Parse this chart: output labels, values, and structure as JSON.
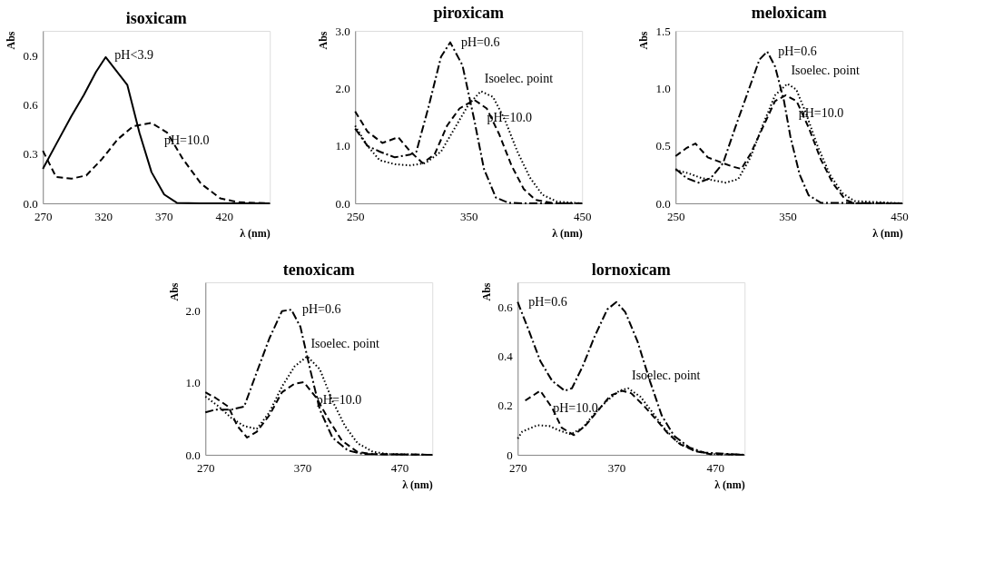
{
  "chart_data": [
    {
      "type": "line",
      "title": "isoxicam",
      "xlabel": "λ (nm)",
      "ylabel": "Abs",
      "xlim": [
        270,
        458
      ],
      "ylim": [
        0,
        1.05
      ],
      "xticks": [
        270,
        320,
        370,
        420
      ],
      "yticks": [
        {
          "value": 0,
          "label": "0.0"
        },
        0.3,
        0.6,
        0.9
      ],
      "grid": false,
      "series": [
        {
          "name": "pH<3.9",
          "color": "#000000",
          "line_style": "solid",
          "x": [
            270,
            281,
            293.6,
            304,
            314,
            322,
            340,
            350,
            360,
            370.5,
            381,
            400,
            430,
            458
          ],
          "values": [
            0.21,
            0.36,
            0.53,
            0.66,
            0.8,
            0.89,
            0.72,
            0.43,
            0.19,
            0.054,
            0.003,
            0,
            0,
            0
          ]
        },
        {
          "name": "pH=10.0",
          "color": "#000000",
          "line_style": "dashed",
          "x": [
            270,
            281,
            293.6,
            306,
            319,
            332,
            345,
            360,
            373,
            386,
            401,
            417,
            432,
            458
          ],
          "values": [
            0.32,
            0.16,
            0.15,
            0.17,
            0.27,
            0.39,
            0.47,
            0.49,
            0.43,
            0.27,
            0.12,
            0.03,
            0.007,
            0
          ]
        }
      ]
    },
    {
      "type": "line",
      "title": "piroxicam",
      "xlabel": "λ (nm)",
      "ylabel": "Abs",
      "xlim": [
        250,
        450
      ],
      "ylim": [
        0,
        3
      ],
      "xticks": [
        250,
        350,
        450
      ],
      "yticks": [
        {
          "value": 0,
          "label": "0.0"
        },
        {
          "value": 1,
          "label": "1.0"
        },
        {
          "value": 2,
          "label": "2.0"
        },
        {
          "value": 3,
          "label": "3.0"
        }
      ],
      "grid": false,
      "series": [
        {
          "name": "pH=0.6",
          "color": "#000000",
          "line_style": "dashdot",
          "x": [
            250,
            260.8,
            271.6,
            285,
            298.6,
            304,
            315,
            325.7,
            333.8,
            344.6,
            355,
            363.5,
            374,
            385,
            398.6,
            450
          ],
          "values": [
            1.3,
            1.0,
            0.9,
            0.8,
            0.85,
            0.9,
            1.7,
            2.55,
            2.8,
            2.4,
            1.45,
            0.6,
            0.1,
            0.01,
            0,
            0
          ]
        },
        {
          "name": "Isoelec. point",
          "color": "#000000",
          "line_style": "dotted",
          "x": [
            250,
            260.8,
            271.6,
            285,
            298.6,
            312,
            325.7,
            339,
            350,
            360.8,
            371.6,
            382,
            393,
            404,
            415,
            428,
            450
          ],
          "values": [
            1.35,
            1.0,
            0.75,
            0.68,
            0.66,
            0.7,
            0.9,
            1.35,
            1.72,
            1.95,
            1.85,
            1.45,
            0.9,
            0.45,
            0.15,
            0.03,
            0
          ]
        },
        {
          "name": "pH=10.0",
          "color": "#000000",
          "line_style": "dashed",
          "x": [
            250,
            260.8,
            274,
            288,
            298.6,
            309.5,
            320,
            331,
            342,
            355,
            366,
            377,
            388,
            398.6,
            409,
            425.7,
            450
          ],
          "values": [
            1.6,
            1.25,
            1.05,
            1.15,
            0.9,
            0.7,
            0.85,
            1.35,
            1.65,
            1.8,
            1.65,
            1.2,
            0.65,
            0.25,
            0.06,
            0,
            0
          ]
        }
      ]
    },
    {
      "type": "line",
      "title": "meloxicam",
      "xlabel": "λ (nm)",
      "ylabel": "Abs",
      "xlim": [
        250,
        453
      ],
      "ylim": [
        0,
        1.5
      ],
      "xticks": [
        250,
        350,
        450
      ],
      "yticks": [
        {
          "value": 0,
          "label": "0.0"
        },
        0.5,
        {
          "value": 1,
          "label": "1.0"
        },
        1.5
      ],
      "grid": false,
      "series": [
        {
          "name": "pH=0.6",
          "color": "#000000",
          "line_style": "dashdot",
          "x": [
            250,
            259.6,
            270.5,
            281.5,
            292.5,
            303.4,
            314.4,
            325,
            332,
            339,
            347,
            352.7,
            361,
            369,
            380,
            453
          ],
          "values": [
            0.3,
            0.22,
            0.18,
            0.22,
            0.35,
            0.66,
            0.96,
            1.25,
            1.32,
            1.19,
            0.89,
            0.58,
            0.25,
            0.07,
            0.005,
            0
          ]
        },
        {
          "name": "Isoelec. point",
          "color": "#000000",
          "line_style": "dotted",
          "x": [
            250,
            262,
            273,
            284,
            295,
            306,
            317,
            328,
            339,
            350,
            358,
            366.4,
            377,
            388,
            399,
            410,
            453
          ],
          "values": [
            0.29,
            0.26,
            0.22,
            0.2,
            0.18,
            0.21,
            0.4,
            0.68,
            0.94,
            1.04,
            0.99,
            0.79,
            0.5,
            0.25,
            0.09,
            0.02,
            0
          ]
        },
        {
          "name": "pH=10.0",
          "color": "#000000",
          "line_style": "dashed",
          "x": [
            250,
            259.6,
            267.8,
            278.8,
            289.7,
            300.7,
            308.9,
            317,
            328,
            339,
            348.6,
            358.2,
            369,
            380,
            391,
            402,
            410,
            453
          ],
          "values": [
            0.41,
            0.48,
            0.52,
            0.4,
            0.36,
            0.32,
            0.3,
            0.43,
            0.66,
            0.89,
            0.94,
            0.89,
            0.66,
            0.38,
            0.17,
            0.03,
            0,
            0
          ]
        }
      ]
    },
    {
      "type": "line",
      "title": "tenoxicam",
      "xlabel": "λ (nm)",
      "ylabel": "Abs",
      "xlim": [
        270,
        504
      ],
      "ylim": [
        0,
        2.4
      ],
      "xticks": [
        270,
        370,
        470
      ],
      "yticks": [
        {
          "value": 0,
          "label": "0.0"
        },
        {
          "value": 1,
          "label": "1.0"
        },
        {
          "value": 2,
          "label": "2.0"
        }
      ],
      "grid": false,
      "series": [
        {
          "name": "pH=0.6",
          "color": "#000000",
          "line_style": "dashdot",
          "x": [
            270,
            280.7,
            297,
            310,
            323,
            336,
            349,
            358.6,
            368,
            378,
            388,
            401,
            417,
            433,
            504
          ],
          "values": [
            0.59,
            0.63,
            0.63,
            0.67,
            1.15,
            1.62,
            2.0,
            2.02,
            1.78,
            1.19,
            0.63,
            0.24,
            0.06,
            0.01,
            0
          ]
        },
        {
          "name": "Isoelec. point",
          "color": "#000000",
          "line_style": "dotted",
          "x": [
            270,
            284,
            297,
            310,
            323,
            336,
            349,
            362,
            375,
            388,
            401,
            414,
            427,
            443,
            459,
            504
          ],
          "values": [
            0.81,
            0.67,
            0.51,
            0.4,
            0.36,
            0.59,
            0.95,
            1.23,
            1.37,
            1.19,
            0.75,
            0.4,
            0.16,
            0.04,
            0.01,
            0
          ]
        },
        {
          "name": "pH=10.0",
          "color": "#000000",
          "line_style": "dashed",
          "x": [
            270,
            280.7,
            293.7,
            303,
            313,
            323,
            336,
            349,
            362,
            371.6,
            384.6,
            397.6,
            410.6,
            426.8,
            443,
            504
          ],
          "values": [
            0.87,
            0.79,
            0.67,
            0.4,
            0.24,
            0.32,
            0.55,
            0.87,
            0.99,
            1.01,
            0.79,
            0.48,
            0.2,
            0.04,
            0.01,
            0
          ]
        }
      ]
    },
    {
      "type": "line",
      "title": "lornoxicam",
      "xlabel": "λ (nm)",
      "ylabel": "Abs",
      "xlim": [
        270,
        500
      ],
      "ylim": [
        0,
        0.7
      ],
      "xticks": [
        270,
        370,
        470
      ],
      "yticks": [
        0,
        0.2,
        0.4,
        0.6
      ],
      "grid": false,
      "series": [
        {
          "name": "pH=0.6",
          "color": "#000000",
          "line_style": "dashdot",
          "x": [
            270,
            280.8,
            293,
            305,
            317.7,
            325,
            336,
            348,
            360.8,
            370,
            379,
            391.5,
            404,
            416,
            428.5,
            444,
            459,
            500
          ],
          "values": [
            0.62,
            0.51,
            0.38,
            0.3,
            0.26,
            0.27,
            0.36,
            0.48,
            0.59,
            0.62,
            0.58,
            0.46,
            0.3,
            0.16,
            0.077,
            0.03,
            0.009,
            0
          ]
        },
        {
          "name": "Isoelec. point",
          "color": "#000000",
          "line_style": "dotted",
          "x": [
            270,
            274.6,
            290,
            302,
            311.5,
            323.8,
            336,
            348.5,
            360.8,
            373,
            382,
            394.6,
            407,
            419,
            431.5,
            447,
            465,
            500
          ],
          "values": [
            0.066,
            0.094,
            0.12,
            0.117,
            0.1,
            0.083,
            0.11,
            0.17,
            0.22,
            0.26,
            0.27,
            0.235,
            0.17,
            0.105,
            0.054,
            0.02,
            0.003,
            0
          ]
        },
        {
          "name": "pH=10.0",
          "color": "#000000",
          "line_style": "dashed",
          "x": [
            277.7,
            293,
            305,
            314.6,
            327,
            339,
            351.5,
            364,
            376,
            385,
            397.7,
            410,
            422,
            434.6,
            450,
            465,
            500
          ],
          "values": [
            0.22,
            0.26,
            0.19,
            0.11,
            0.08,
            0.12,
            0.18,
            0.24,
            0.26,
            0.25,
            0.2,
            0.145,
            0.088,
            0.043,
            0.015,
            0.003,
            0
          ]
        }
      ]
    }
  ]
}
